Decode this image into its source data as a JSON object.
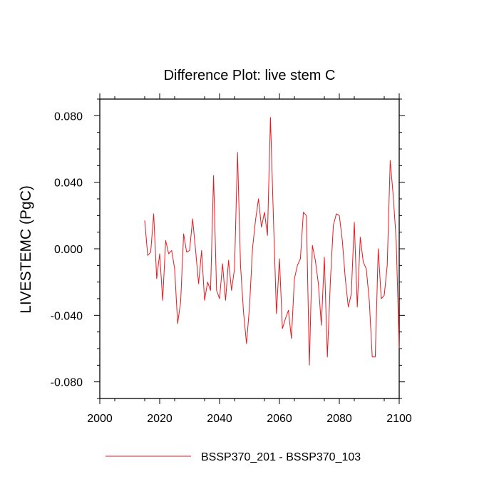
{
  "chart_data": {
    "type": "line",
    "title": "Difference Plot: live stem C",
    "xlabel": "",
    "ylabel": "LIVESTEMC  (PgC)",
    "xlim": [
      2000,
      2100
    ],
    "ylim": [
      -0.09,
      0.09
    ],
    "xticks": [
      2000,
      2020,
      2040,
      2060,
      2080,
      2100
    ],
    "xtick_labels": [
      "2000",
      "2020",
      "2040",
      "2060",
      "2080",
      "2100"
    ],
    "yticks": [
      -0.08,
      -0.04,
      0.0,
      0.04,
      0.08
    ],
    "ytick_labels": [
      "-0.080",
      "-0.040",
      "0.000",
      "0.040",
      "0.080"
    ],
    "legend": {
      "position": "bottom-center",
      "entries": [
        "BSSP370_201 - BSSP370_103"
      ]
    },
    "series": [
      {
        "name": "BSSP370_201 - BSSP370_103",
        "color": "#e8191f",
        "x": [
          2015,
          2016,
          2017,
          2018,
          2019,
          2020,
          2021,
          2022,
          2023,
          2024,
          2025,
          2026,
          2027,
          2028,
          2029,
          2030,
          2031,
          2032,
          2033,
          2034,
          2035,
          2036,
          2037,
          2038,
          2039,
          2040,
          2041,
          2042,
          2043,
          2044,
          2045,
          2046,
          2047,
          2048,
          2049,
          2050,
          2051,
          2052,
          2053,
          2054,
          2055,
          2056,
          2057,
          2058,
          2059,
          2060,
          2061,
          2062,
          2063,
          2064,
          2065,
          2066,
          2067,
          2068,
          2069,
          2070,
          2071,
          2072,
          2073,
          2074,
          2075,
          2076,
          2077,
          2078,
          2079,
          2080,
          2081,
          2082,
          2083,
          2084,
          2085,
          2086,
          2087,
          2088,
          2089,
          2090,
          2091,
          2092,
          2093,
          2094,
          2095,
          2096,
          2097,
          2098,
          2099,
          2100
        ],
        "values": [
          0.017,
          -0.004,
          -0.002,
          0.021,
          -0.018,
          -0.003,
          -0.031,
          0.005,
          -0.003,
          -0.001,
          -0.012,
          -0.045,
          -0.032,
          0.009,
          -0.002,
          -0.001,
          0.018,
          -0.001,
          -0.021,
          -0.001,
          -0.031,
          -0.02,
          -0.025,
          0.044,
          -0.025,
          -0.03,
          -0.009,
          -0.031,
          -0.007,
          -0.025,
          -0.012,
          0.058,
          -0.01,
          -0.038,
          -0.057,
          -0.035,
          0.0,
          0.017,
          0.03,
          0.013,
          0.022,
          0.008,
          0.079,
          0.018,
          -0.039,
          -0.006,
          -0.048,
          -0.042,
          -0.037,
          -0.054,
          -0.018,
          -0.01,
          -0.006,
          0.022,
          0.02,
          -0.07,
          0.002,
          -0.007,
          -0.021,
          -0.046,
          -0.005,
          -0.065,
          -0.02,
          0.014,
          0.021,
          0.02,
          0.005,
          -0.018,
          -0.035,
          -0.027,
          0.016,
          -0.035,
          0.007,
          -0.008,
          -0.012,
          -0.031,
          -0.065,
          -0.065,
          0.0,
          -0.03,
          -0.028,
          -0.01,
          0.053,
          0.032,
          0.005,
          -0.06
        ]
      }
    ]
  }
}
